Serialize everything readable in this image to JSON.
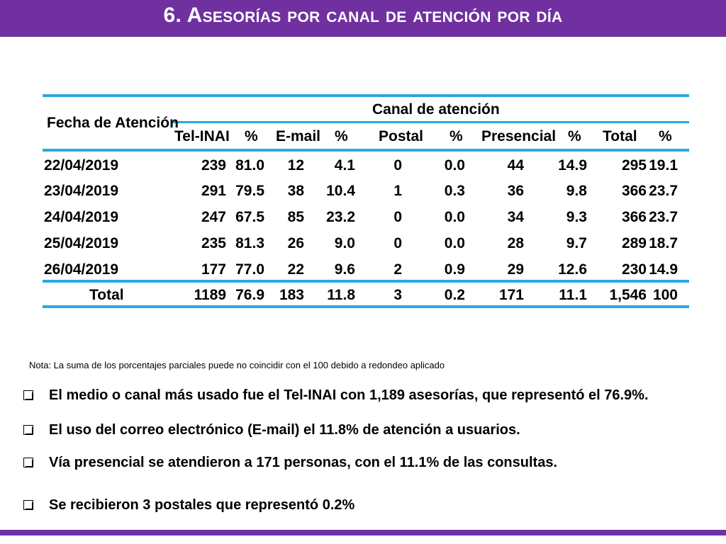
{
  "header": {
    "title": "6. Asesorías por canal de atención por día"
  },
  "table": {
    "row_header": "Fecha de Atención",
    "group_header": "Canal de atención",
    "columns": [
      "Tel-INAI",
      "%",
      "E-mail",
      "%",
      "Postal",
      "%",
      "Presencial",
      "%",
      "Total",
      "%"
    ],
    "rows": [
      [
        "22/04/2019",
        "239",
        "81.0",
        "12",
        "4.1",
        "0",
        "0.0",
        "44",
        "14.9",
        "295",
        "19.1"
      ],
      [
        "23/04/2019",
        "291",
        "79.5",
        "38",
        "10.4",
        "1",
        "0.3",
        "36",
        "9.8",
        "366",
        "23.7"
      ],
      [
        "24/04/2019",
        "247",
        "67.5",
        "85",
        "23.2",
        "0",
        "0.0",
        "34",
        "9.3",
        "366",
        "23.7"
      ],
      [
        "25/04/2019",
        "235",
        "81.3",
        "26",
        "9.0",
        "0",
        "0.0",
        "28",
        "9.7",
        "289",
        "18.7"
      ],
      [
        "26/04/2019",
        "177",
        "77.0",
        "22",
        "9.6",
        "2",
        "0.9",
        "29",
        "12.6",
        "230",
        "14.9"
      ]
    ],
    "total_row": [
      "Total",
      "1189",
      "76.9",
      "183",
      "11.8",
      "3",
      "0.2",
      "171",
      "11.1",
      "1,546",
      "100"
    ],
    "border_color": "#29a8e0"
  },
  "note": "Nota: La suma de los porcentajes parciales puede no coincidir con el 100 debido a redondeo aplicado",
  "bullets": [
    {
      "icon": "checkbox-bullet-icon",
      "text": "El medio o canal más usado fue el Tel-INAI con 1,189 asesorías, que representó el 76.9%."
    },
    {
      "icon": "checkbox-bullet-icon",
      "text": "El uso del correo electrónico (E-mail) el 11.8% de atención a usuarios."
    },
    {
      "icon": "checkbox-bullet-icon",
      "text": "Vía presencial se atendieron a 171 personas, con el 11.1% de las consultas."
    },
    {
      "icon": "checkbox-bullet-icon",
      "text": "Se recibieron 3 postales que representó 0.2%"
    }
  ],
  "colors": {
    "header_bg": "#7030a0",
    "header_text": "#ffffff",
    "table_lines": "#29a8e0"
  }
}
